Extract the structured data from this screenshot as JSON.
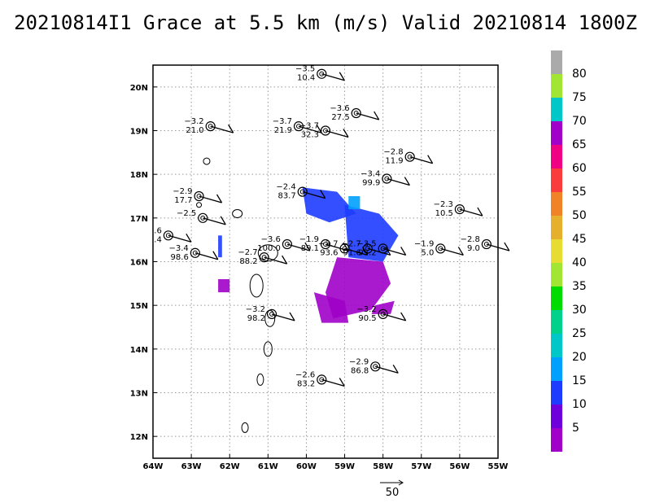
{
  "title": "20210814I1 Grace at 5.5 km (m/s) Valid 20210814 1800Z",
  "chart_data": {
    "type": "scatter",
    "title": "20210814I1 Grace at 5.5 km (m/s) Valid 20210814 1800Z",
    "xlim": [
      -64,
      -55
    ],
    "ylim": [
      11.5,
      20.5
    ],
    "x_tick_labels": [
      "64W",
      "63W",
      "62W",
      "61W",
      "60W",
      "59W",
      "58W",
      "57W",
      "56W",
      "55W"
    ],
    "y_tick_labels": [
      "12N",
      "13N",
      "14N",
      "15N",
      "16N",
      "17N",
      "18N",
      "19N",
      "20N"
    ],
    "grid": true,
    "colorbar": {
      "labels": [
        "5",
        "10",
        "15",
        "20",
        "25",
        "30",
        "35",
        "40",
        "45",
        "50",
        "55",
        "60",
        "65",
        "70",
        "75",
        "80"
      ],
      "colors": [
        "#a000c8",
        "#6e00dc",
        "#1e3cff",
        "#00a0ff",
        "#00c8c8",
        "#00d28c",
        "#00dc00",
        "#a0e632",
        "#e6dc32",
        "#e6af2d",
        "#f08228",
        "#fa3c3c",
        "#f00082",
        "#a000c8",
        "#00c8c8",
        "#a0e632",
        "#aaaaaa"
      ]
    },
    "wind_vector_scale": "50",
    "stations": [
      {
        "lon": -59.6,
        "lat": 20.3,
        "top": "−3.5",
        "bottom": "10.4"
      },
      {
        "lon": -58.7,
        "lat": 19.4,
        "top": "−3.6",
        "bottom": "27.5"
      },
      {
        "lon": -62.5,
        "lat": 19.1,
        "top": "−3.2",
        "bottom": "21.0"
      },
      {
        "lon": -60.2,
        "lat": 19.1,
        "top": "−3.7",
        "bottom": "21.9"
      },
      {
        "lon": -59.5,
        "lat": 19.0,
        "top": "−3.7",
        "bottom": "32.3"
      },
      {
        "lon": -57.3,
        "lat": 18.4,
        "top": "−2.8",
        "bottom": "11.9"
      },
      {
        "lon": -57.9,
        "lat": 17.9,
        "top": "−3.4",
        "bottom": "99.9"
      },
      {
        "lon": -62.8,
        "lat": 17.5,
        "top": "−2.9",
        "bottom": "17.7"
      },
      {
        "lon": -60.1,
        "lat": 17.6,
        "top": "−2.4",
        "bottom": "83.7"
      },
      {
        "lon": -56.0,
        "lat": 17.2,
        "top": "−2.3",
        "bottom": "10.5"
      },
      {
        "lon": -62.7,
        "lat": 17.0,
        "top": "−2.5",
        "bottom": ""
      },
      {
        "lon": -63.6,
        "lat": 16.6,
        "top": ".6",
        "bottom": ".4"
      },
      {
        "lon": -56.5,
        "lat": 16.3,
        "top": "−1.9",
        "bottom": "5.0"
      },
      {
        "lon": -55.3,
        "lat": 16.4,
        "top": "−2.8",
        "bottom": "9.0"
      },
      {
        "lon": -62.9,
        "lat": 16.2,
        "top": "−3.4",
        "bottom": "98.6"
      },
      {
        "lon": -61.1,
        "lat": 16.1,
        "top": "−2.7",
        "bottom": "88.2"
      },
      {
        "lon": -60.5,
        "lat": 16.4,
        "top": "−3.6",
        "bottom": "100.0"
      },
      {
        "lon": -59.5,
        "lat": 16.4,
        "top": "−1.9",
        "bottom": "89.1"
      },
      {
        "lon": -59.0,
        "lat": 16.3,
        "top": "−3.7",
        "bottom": "93.6"
      },
      {
        "lon": -58.4,
        "lat": 16.3,
        "top": "−2.7",
        "bottom": "91.6"
      },
      {
        "lon": -58.0,
        "lat": 16.3,
        "top": "−3.5",
        "bottom": "93.2"
      },
      {
        "lon": -60.9,
        "lat": 14.8,
        "top": "−3.2",
        "bottom": "98.2"
      },
      {
        "lon": -58.0,
        "lat": 14.8,
        "top": "−3.2",
        "bottom": "90.5"
      },
      {
        "lon": -58.2,
        "lat": 13.6,
        "top": "−2.9",
        "bottom": "86.8"
      },
      {
        "lon": -59.6,
        "lat": 13.3,
        "top": "−2.6",
        "bottom": "83.2"
      }
    ]
  }
}
